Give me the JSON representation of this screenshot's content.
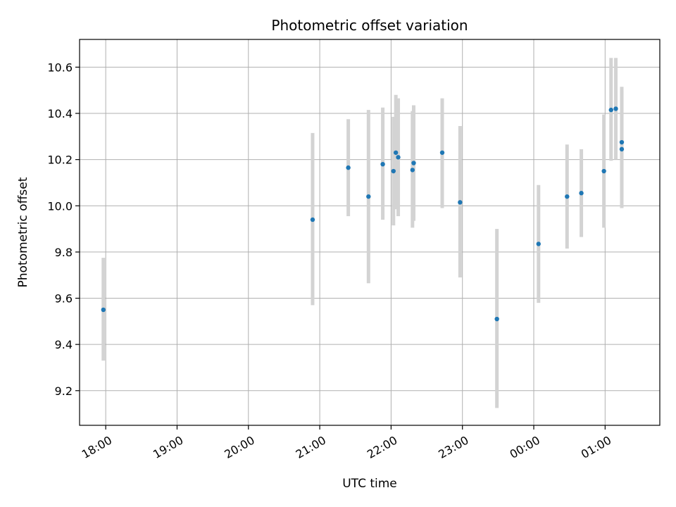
{
  "chart_data": {
    "type": "scatter",
    "title": "Photometric offset variation",
    "xlabel": "UTC time",
    "ylabel": "Photometric offset",
    "x_axis": {
      "kind": "time",
      "start": "17:38",
      "end": "01:46",
      "ticks": [
        "18:00",
        "19:00",
        "20:00",
        "21:00",
        "22:00",
        "23:00",
        "00:00",
        "01:00"
      ]
    },
    "ylim": [
      9.05,
      10.72
    ],
    "y_ticks": [
      "9.2",
      "9.4",
      "9.6",
      "9.8",
      "10.0",
      "10.2",
      "10.4",
      "10.6"
    ],
    "grid": true,
    "colors": {
      "point": "#1f77b4",
      "errorbar": "#d3d3d3",
      "grid": "#b0b0b0"
    },
    "points": [
      {
        "t": "17:58",
        "y": 9.55,
        "ylow": 9.33,
        "yhigh": 9.775
      },
      {
        "t": "20:54",
        "y": 9.94,
        "ylow": 9.57,
        "yhigh": 10.315
      },
      {
        "t": "21:24",
        "y": 10.165,
        "ylow": 9.955,
        "yhigh": 10.375
      },
      {
        "t": "21:41",
        "y": 10.04,
        "ylow": 9.665,
        "yhigh": 10.415
      },
      {
        "t": "21:53",
        "y": 10.18,
        "ylow": 9.94,
        "yhigh": 10.425
      },
      {
        "t": "22:02",
        "y": 10.15,
        "ylow": 9.915,
        "yhigh": 10.385
      },
      {
        "t": "22:04",
        "y": 10.23,
        "ylow": 9.985,
        "yhigh": 10.48
      },
      {
        "t": "22:06",
        "y": 10.21,
        "ylow": 9.955,
        "yhigh": 10.465
      },
      {
        "t": "22:18",
        "y": 10.155,
        "ylow": 9.905,
        "yhigh": 10.41
      },
      {
        "t": "22:19",
        "y": 10.185,
        "ylow": 9.935,
        "yhigh": 10.435
      },
      {
        "t": "22:43",
        "y": 10.23,
        "ylow": 9.99,
        "yhigh": 10.465
      },
      {
        "t": "22:58",
        "y": 10.015,
        "ylow": 9.69,
        "yhigh": 10.345
      },
      {
        "t": "23:29",
        "y": 9.51,
        "ylow": 9.125,
        "yhigh": 9.9
      },
      {
        "t": "00:04",
        "y": 9.835,
        "ylow": 9.58,
        "yhigh": 10.09
      },
      {
        "t": "00:28",
        "y": 10.04,
        "ylow": 9.815,
        "yhigh": 10.265
      },
      {
        "t": "00:40",
        "y": 10.055,
        "ylow": 9.865,
        "yhigh": 10.245
      },
      {
        "t": "00:59",
        "y": 10.15,
        "ylow": 9.905,
        "yhigh": 10.395
      },
      {
        "t": "01:05",
        "y": 10.415,
        "ylow": 10.195,
        "yhigh": 10.64
      },
      {
        "t": "01:09",
        "y": 10.42,
        "ylow": 10.2,
        "yhigh": 10.64
      },
      {
        "t": "01:14",
        "y": 10.245,
        "ylow": 9.99,
        "yhigh": 10.5
      },
      {
        "t": "01:14",
        "y": 10.275,
        "ylow": 10.035,
        "yhigh": 10.515
      }
    ]
  }
}
